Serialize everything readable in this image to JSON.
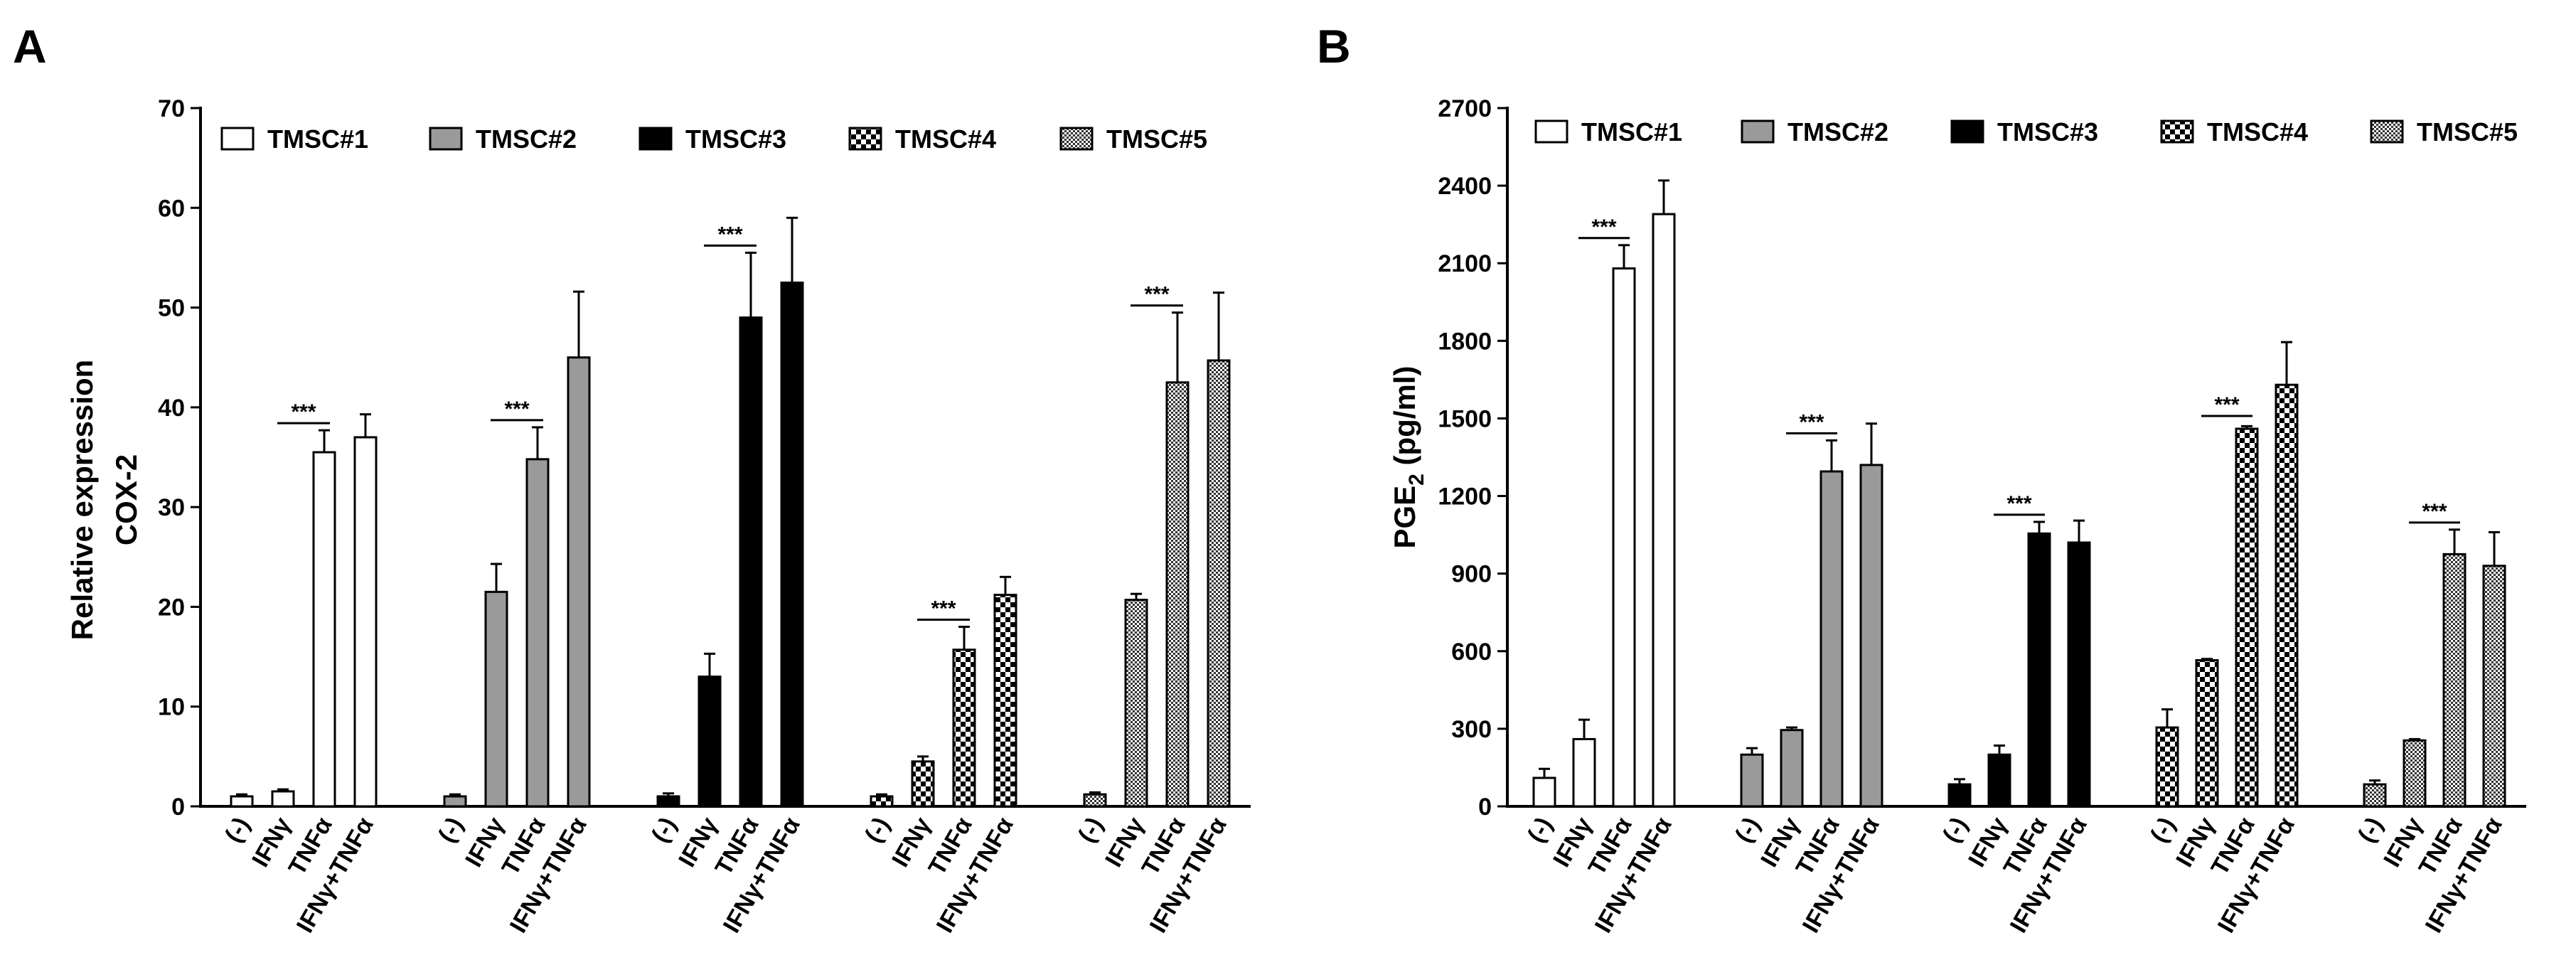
{
  "colors": {
    "ink": "#000000",
    "gray_fill": "#9a9a9a",
    "white": "#ffffff"
  },
  "legend": [
    {
      "label": "TMSC#1",
      "pattern": "white"
    },
    {
      "label": "TMSC#2",
      "pattern": "gray"
    },
    {
      "label": "TMSC#3",
      "pattern": "black"
    },
    {
      "label": "TMSC#4",
      "pattern": "checker"
    },
    {
      "label": "TMSC#5",
      "pattern": "fine"
    }
  ],
  "category_labels": [
    "(-)",
    "IFNγ",
    "TNFα",
    "IFNγ+TNFα"
  ],
  "chart_data": [
    {
      "panel": "A",
      "type": "bar",
      "ylabel_lines": [
        "Relative expression",
        "COX-2"
      ],
      "ylim": [
        0,
        70
      ],
      "yticks": [
        0,
        10,
        20,
        30,
        40,
        50,
        60,
        70
      ],
      "significance": "***",
      "groups": [
        {
          "name": "TMSC#1",
          "pattern": "white",
          "values": [
            1.0,
            1.5,
            35.5,
            37.0
          ],
          "errors": [
            0.2,
            0.2,
            2.2,
            2.3
          ]
        },
        {
          "name": "TMSC#2",
          "pattern": "gray",
          "values": [
            1.0,
            21.5,
            34.8,
            45.0
          ],
          "errors": [
            0.2,
            2.8,
            3.2,
            6.6
          ]
        },
        {
          "name": "TMSC#3",
          "pattern": "black",
          "values": [
            1.0,
            13.0,
            49.0,
            52.5
          ],
          "errors": [
            0.3,
            2.3,
            6.5,
            6.5
          ]
        },
        {
          "name": "TMSC#4",
          "pattern": "checker",
          "values": [
            1.0,
            4.5,
            15.7,
            21.2
          ],
          "errors": [
            0.2,
            0.5,
            2.3,
            1.8
          ]
        },
        {
          "name": "TMSC#5",
          "pattern": "fine",
          "values": [
            1.2,
            20.7,
            42.5,
            44.7
          ],
          "errors": [
            0.2,
            0.6,
            7.0,
            6.8
          ]
        }
      ]
    },
    {
      "panel": "B",
      "type": "bar",
      "ylabel_lines": [
        "PGE2 (pg/ml)"
      ],
      "ylim": [
        0,
        2700
      ],
      "yticks": [
        0,
        300,
        600,
        900,
        1200,
        1500,
        1800,
        2100,
        2400,
        2700
      ],
      "significance": "***",
      "groups": [
        {
          "name": "TMSC#1",
          "pattern": "white",
          "values": [
            110,
            260,
            2080,
            2290
          ],
          "errors": [
            35,
            75,
            90,
            130
          ]
        },
        {
          "name": "TMSC#2",
          "pattern": "gray",
          "values": [
            200,
            295,
            1295,
            1320
          ],
          "errors": [
            25,
            10,
            120,
            160
          ]
        },
        {
          "name": "TMSC#3",
          "pattern": "black",
          "values": [
            85,
            200,
            1055,
            1020
          ],
          "errors": [
            20,
            35,
            45,
            85
          ]
        },
        {
          "name": "TMSC#4",
          "pattern": "checker",
          "values": [
            305,
            565,
            1460,
            1630
          ],
          "errors": [
            70,
            5,
            10,
            165
          ]
        },
        {
          "name": "TMSC#5",
          "pattern": "fine",
          "values": [
            85,
            255,
            975,
            930
          ],
          "errors": [
            15,
            5,
            95,
            130
          ]
        }
      ]
    }
  ]
}
